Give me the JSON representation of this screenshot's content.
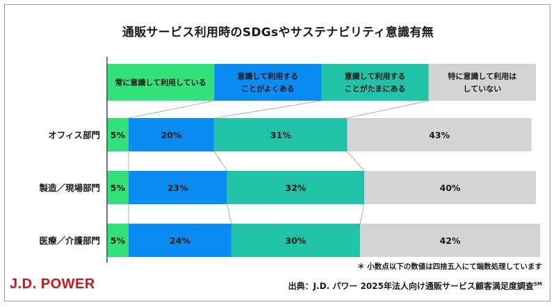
{
  "chart_data": {
    "type": "bar",
    "orientation": "horizontal-stacked-100",
    "title": "通販サービス利用時のSDGsやサステナビリティ意識有無",
    "categories": [
      "オフィス部門",
      "製造／現場部門",
      "医療／介護部門"
    ],
    "series": [
      {
        "name": "常に意識して利用している",
        "legend_lines": [
          "常に意識して利用している"
        ],
        "color": "#33e07a",
        "values": [
          5,
          5,
          5
        ]
      },
      {
        "name": "意識して利用することがよくある",
        "legend_lines": [
          "意識して利用する",
          "ことがよくある"
        ],
        "color": "#0a8cf2",
        "values": [
          20,
          23,
          24
        ]
      },
      {
        "name": "意識して利用することがたまにある",
        "legend_lines": [
          "意識して利用する",
          "ことがたまにある"
        ],
        "color": "#22c2a8",
        "values": [
          31,
          32,
          30
        ]
      },
      {
        "name": "特に意識して利用はしていない",
        "legend_lines": [
          "特に意識して利用は",
          "していない"
        ],
        "color": "#d4d4d4",
        "values": [
          43,
          40,
          42
        ]
      }
    ],
    "value_suffix": "%",
    "legend_placement": "top",
    "grid": false
  },
  "footnote": "＊ 小数点以下の数値は四捨五入にて端数処理しています",
  "source_prefix": "出典：J.D. パワー 2025年法人向け通販サービス顧客満足度調査",
  "source_mark": "SM",
  "logo_text": "J.D. POWER"
}
